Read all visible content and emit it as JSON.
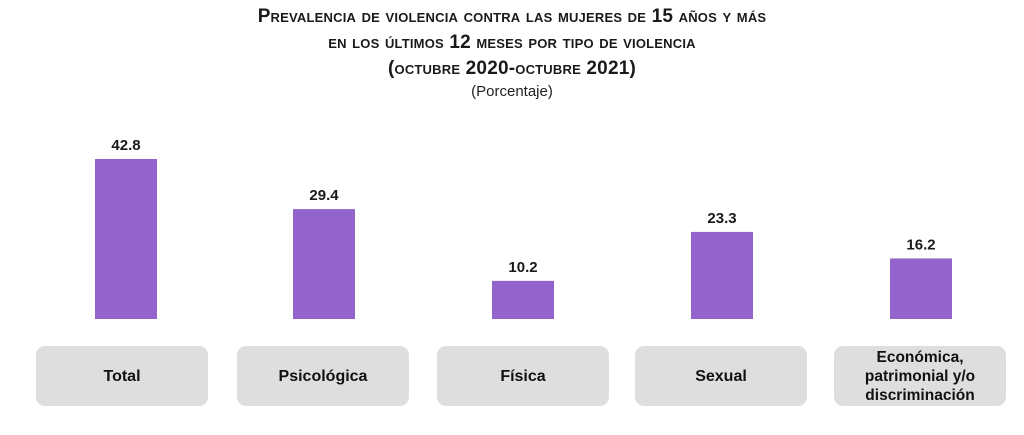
{
  "title": {
    "line1": "Prevalencia de violencia contra las mujeres de 15 años y más",
    "line2": "en los últimos 12 meses por tipo de violencia",
    "line3": "(octubre 2020-octubre 2021)"
  },
  "subtitle": "(Porcentaje)",
  "colors": {
    "bar": "#9365cc",
    "category_box": "#dedede"
  },
  "chart_data": {
    "type": "bar",
    "title": "Prevalencia de violencia contra las mujeres de 15 años y más en los últimos 12 meses por tipo de violencia (octubre 2020-octubre 2021)",
    "subtitle": "(Porcentaje)",
    "categories": [
      "Total",
      "Psicológica",
      "Física",
      "Sexual",
      "Económica, patrimonial y/o discriminación"
    ],
    "values": [
      42.8,
      29.4,
      10.2,
      23.3,
      16.2
    ],
    "value_labels": [
      "42.8",
      "29.4",
      "10.2",
      "23.3",
      "16.2"
    ],
    "xlabel": "",
    "ylabel": "",
    "ylim": [
      0,
      42.8
    ],
    "grid": false,
    "legend": "none"
  }
}
